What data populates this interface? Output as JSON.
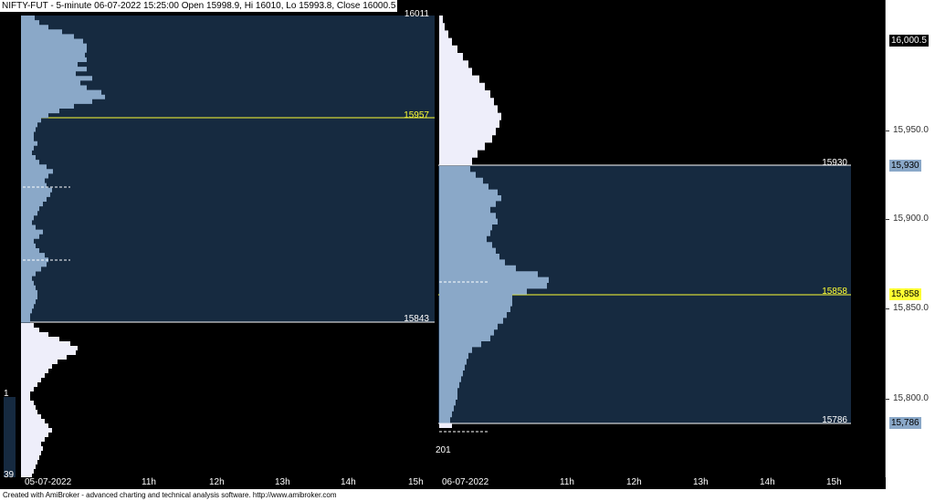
{
  "header": {
    "title": "NIFTY-FUT - 5-minute 06-07-2022 15:25:00 Open 15998.9, Hi 16010, Lo 15993.8, Close 16000.5"
  },
  "day1": {
    "date_label": "05-07-2022",
    "top_label": "16011",
    "poc_label": "15957",
    "low_label": "15843",
    "side_top": "1",
    "side_bottom": "39"
  },
  "day2": {
    "date_label": "06-07-2022",
    "high_label": "15930",
    "poc_label": "15858",
    "low_label": "15786",
    "volume_label": "201"
  },
  "time_ticks": [
    "11h",
    "12h",
    "13h",
    "14h",
    "15h"
  ],
  "price_axis": {
    "current": "16,000.5",
    "ticks": [
      "15,950.0",
      "15,900.0",
      "15,850.0",
      "15,800.0"
    ],
    "highlights": [
      {
        "text": "15,930",
        "style": "blue"
      },
      {
        "text": "15,858",
        "style": "yellow"
      },
      {
        "text": "15,786",
        "style": "blue"
      }
    ]
  },
  "footer": "Created with AmiBroker - advanced charting and technical analysis software. http://www.amibroker.com",
  "colors": {
    "value_area": "#162a40",
    "profile_blue": "#8aa8c8",
    "profile_white": "#eeeefa",
    "poc_line": "#ffff33",
    "edge_line": "#ffffff"
  }
}
